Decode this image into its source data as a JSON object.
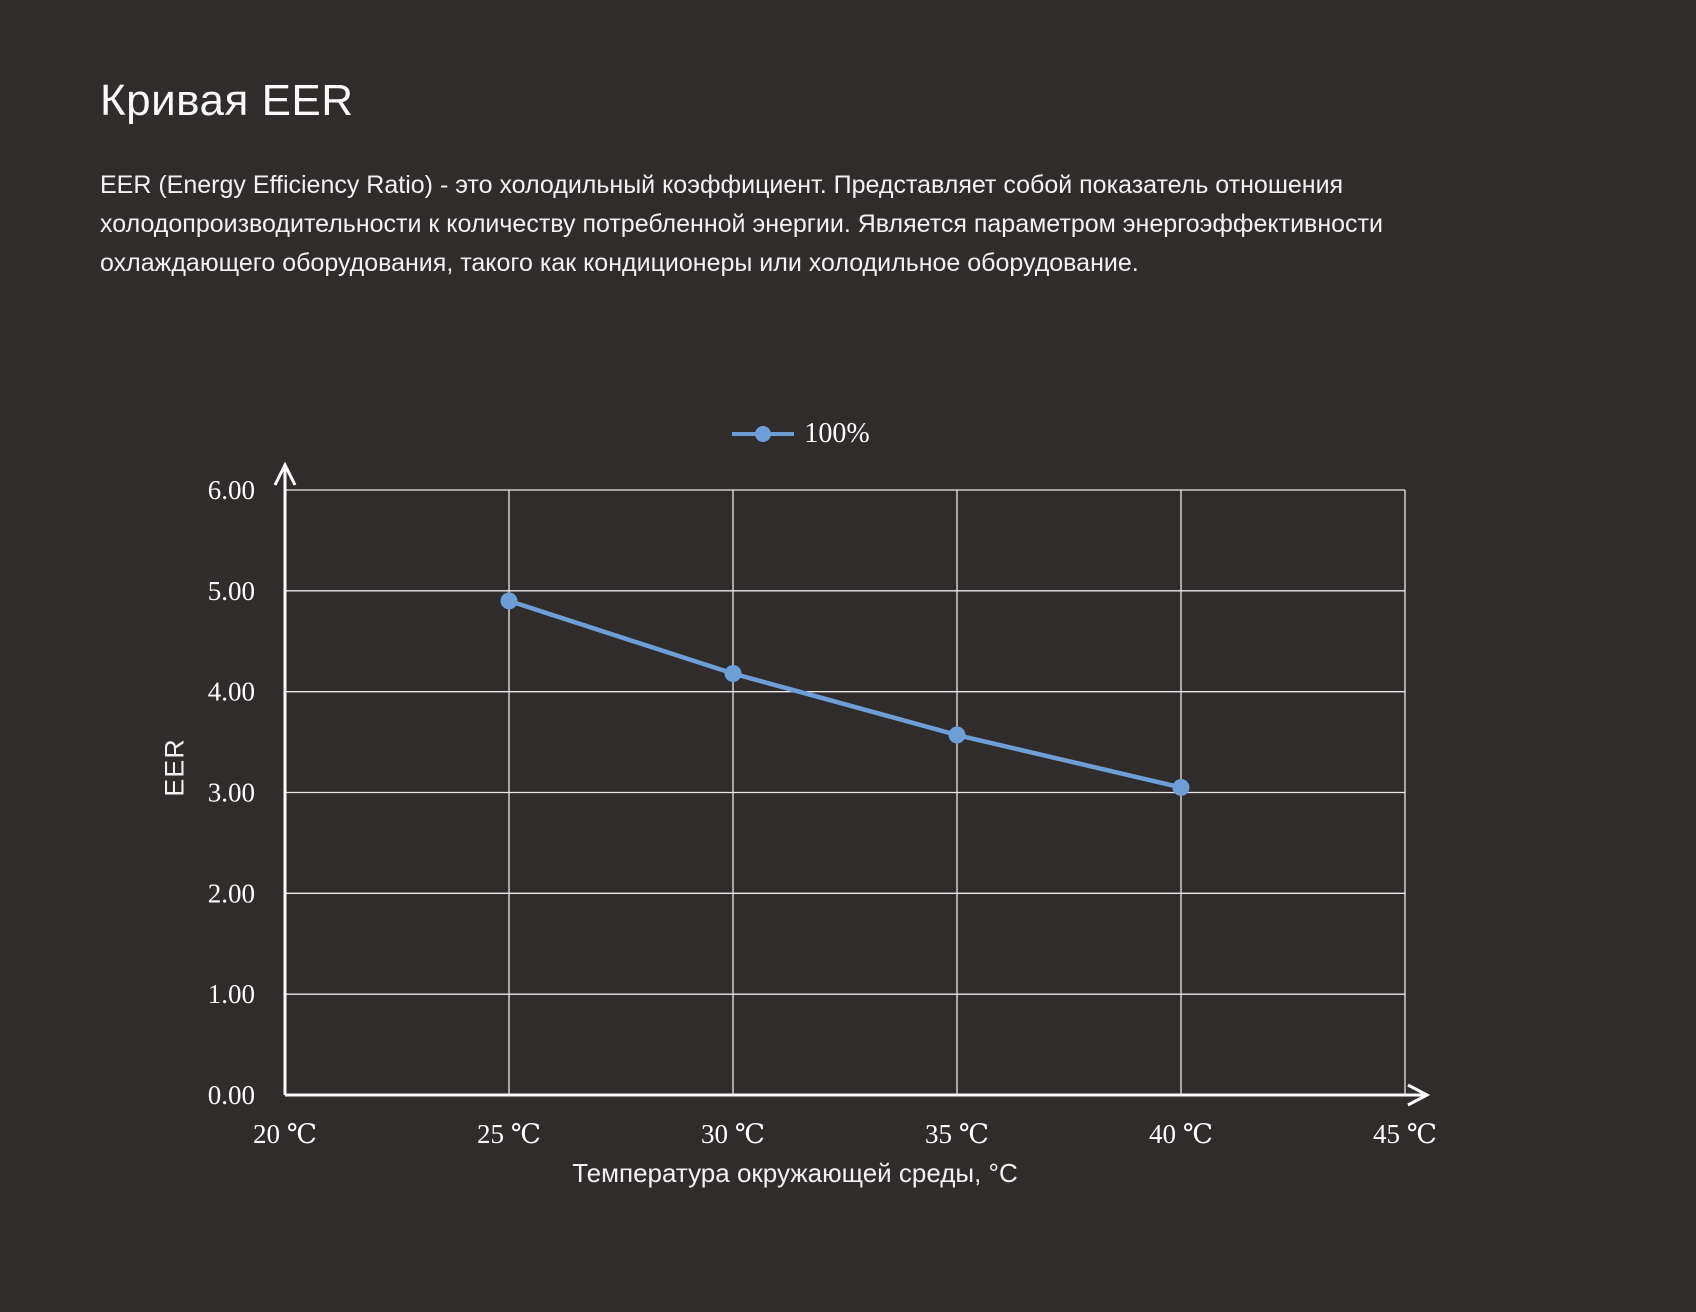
{
  "page": {
    "title": "Кривая EER",
    "description": "EER (Energy Efficiency Ratio) - это холодильный коэффициент. Представляет собой показатель отношения холодопроизводительности к количеству потребленной энергии. Является параметром энергоэффективности охлаждающего оборудования, такого как кондиционеры или холодильное оборудование."
  },
  "chart_data": {
    "type": "line",
    "title": "Кривая EER",
    "xlabel": "Температура окружающей среды, °С",
    "ylabel": "EER",
    "legend_position": "top-center",
    "grid": true,
    "x": [
      25,
      30,
      35,
      40
    ],
    "series": [
      {
        "name": "100%",
        "values": [
          4.9,
          4.18,
          3.57,
          3.05
        ]
      }
    ],
    "xlim": [
      20,
      45
    ],
    "ylim": [
      0,
      6
    ],
    "x_tick_values": [
      20,
      25,
      30,
      35,
      40,
      45
    ],
    "x_tick_labels": [
      "20 ℃",
      "25 ℃",
      "30 ℃",
      "35 ℃",
      "40 ℃",
      "45 ℃"
    ],
    "y_tick_values": [
      0,
      1,
      2,
      3,
      4,
      5,
      6
    ],
    "y_tick_labels": [
      "0.00",
      "1.00",
      "2.00",
      "3.00",
      "4.00",
      "5.00",
      "6.00"
    ],
    "line_color": "#6d9ed6",
    "marker_color": "#6d9ed6",
    "axis_color": "#ffffff",
    "grid_color": "#e8e8e8",
    "background_color": "#302c2b",
    "text_color": "#ffffff"
  }
}
